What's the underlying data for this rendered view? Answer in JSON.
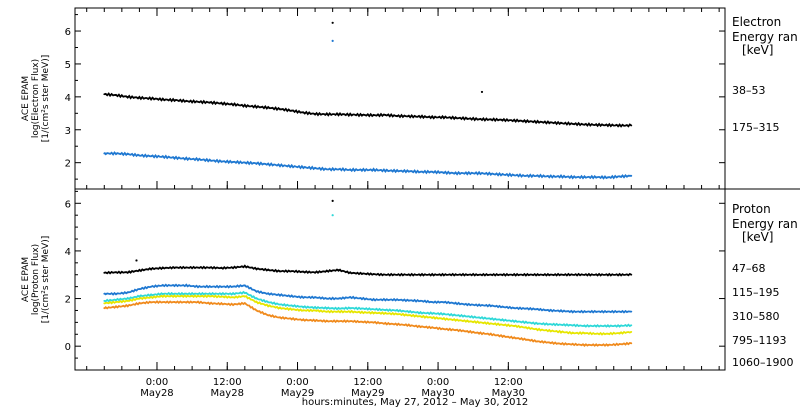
{
  "chart_data": [
    {
      "type": "scatter",
      "panel": "electron",
      "ylabel": [
        "ACE EPAM",
        "log(Electron Flux)",
        "[1/(cm²s ster MeV)]"
      ],
      "ylim": [
        1.2,
        6.7
      ],
      "yticks": [
        2,
        3,
        4,
        5,
        6
      ],
      "legend_title": [
        "Electron",
        "Energy ran",
        "[keV]"
      ],
      "legend_placement": "right",
      "series": [
        {
          "name": "38–53",
          "color": "#000000",
          "x": [
            0,
            2,
            4,
            6,
            8,
            10,
            12,
            14,
            16,
            18,
            20,
            22,
            24,
            26,
            28,
            30,
            32,
            34,
            36,
            38,
            40,
            42,
            44,
            46,
            48,
            50,
            52,
            54,
            56,
            58,
            60,
            62,
            64,
            66,
            68,
            70,
            72,
            74,
            76,
            78,
            80,
            82,
            84,
            86,
            88,
            90
          ],
          "y": [
            4.08,
            4.05,
            4.0,
            3.97,
            3.95,
            3.92,
            3.9,
            3.87,
            3.85,
            3.83,
            3.8,
            3.77,
            3.73,
            3.7,
            3.67,
            3.63,
            3.58,
            3.52,
            3.48,
            3.47,
            3.47,
            3.46,
            3.45,
            3.44,
            3.45,
            3.42,
            3.41,
            3.4,
            3.38,
            3.38,
            3.36,
            3.34,
            3.32,
            3.31,
            3.3,
            3.28,
            3.26,
            3.24,
            3.22,
            3.2,
            3.18,
            3.16,
            3.15,
            3.14,
            3.13,
            3.13
          ]
        },
        {
          "name": "175–315",
          "color": "#1f78d1",
          "x": [
            0,
            2,
            4,
            6,
            8,
            10,
            12,
            14,
            16,
            18,
            20,
            22,
            24,
            26,
            28,
            30,
            32,
            34,
            36,
            38,
            40,
            42,
            44,
            46,
            48,
            50,
            52,
            54,
            56,
            58,
            60,
            62,
            64,
            66,
            68,
            70,
            72,
            74,
            76,
            78,
            80,
            82,
            84,
            86,
            88,
            90
          ],
          "y": [
            2.28,
            2.28,
            2.26,
            2.22,
            2.2,
            2.18,
            2.15,
            2.12,
            2.1,
            2.07,
            2.04,
            2.02,
            2.0,
            1.98,
            1.95,
            1.92,
            1.89,
            1.86,
            1.83,
            1.8,
            1.8,
            1.78,
            1.78,
            1.78,
            1.76,
            1.75,
            1.74,
            1.72,
            1.72,
            1.7,
            1.68,
            1.68,
            1.68,
            1.66,
            1.64,
            1.62,
            1.6,
            1.6,
            1.58,
            1.58,
            1.56,
            1.56,
            1.56,
            1.55,
            1.58,
            1.6
          ]
        },
        {
          "name": "38–53 spikes",
          "color": "#000000",
          "x": [
            39,
            64.5
          ],
          "y": [
            6.25,
            4.15
          ]
        },
        {
          "name": "175–315 spikes",
          "color": "#1f78d1",
          "x": [
            39
          ],
          "y": [
            5.7
          ]
        }
      ]
    },
    {
      "type": "scatter",
      "panel": "proton",
      "ylabel": [
        "ACE EPAM",
        "log(Proton Flux)",
        "[1/(cm²s ster MeV)]"
      ],
      "ylim": [
        -1.0,
        6.6
      ],
      "yticks": [
        0,
        2,
        4,
        6
      ],
      "legend_title": [
        "Proton",
        "Energy ran",
        "[keV]"
      ],
      "legend_placement": "right",
      "series": [
        {
          "name": "47–68",
          "color": "#000000",
          "x": [
            0,
            2,
            4,
            6,
            8,
            10,
            12,
            14,
            16,
            18,
            20,
            22,
            24,
            26,
            28,
            30,
            32,
            34,
            36,
            38,
            40,
            42,
            44,
            46,
            48,
            50,
            52,
            54,
            56,
            58,
            60,
            62,
            64,
            66,
            68,
            70,
            72,
            74,
            76,
            78,
            80,
            82,
            84,
            86,
            88,
            90
          ],
          "y": [
            3.08,
            3.1,
            3.1,
            3.18,
            3.25,
            3.28,
            3.3,
            3.3,
            3.3,
            3.3,
            3.28,
            3.3,
            3.35,
            3.25,
            3.2,
            3.15,
            3.15,
            3.12,
            3.1,
            3.15,
            3.2,
            3.08,
            3.05,
            3.02,
            3.0,
            3.0,
            3.0,
            3.0,
            3.0,
            3.0,
            3.0,
            3.0,
            3.0,
            3.0,
            3.0,
            3.0,
            3.0,
            3.0,
            3.0,
            3.0,
            3.0,
            3.0,
            3.0,
            3.0,
            3.0,
            3.0
          ]
        },
        {
          "name": "115–195",
          "color": "#1f78d1",
          "x": [
            0,
            2,
            4,
            6,
            8,
            10,
            12,
            14,
            16,
            18,
            20,
            22,
            24,
            26,
            28,
            30,
            32,
            34,
            36,
            38,
            40,
            42,
            44,
            46,
            48,
            50,
            52,
            54,
            56,
            58,
            60,
            62,
            64,
            66,
            68,
            70,
            72,
            74,
            76,
            78,
            80,
            82,
            84,
            86,
            88,
            90
          ],
          "y": [
            2.2,
            2.2,
            2.25,
            2.4,
            2.5,
            2.55,
            2.55,
            2.55,
            2.5,
            2.5,
            2.5,
            2.5,
            2.55,
            2.3,
            2.2,
            2.15,
            2.1,
            2.05,
            2.05,
            2.0,
            2.0,
            2.05,
            2.0,
            1.95,
            1.95,
            1.95,
            1.92,
            1.9,
            1.85,
            1.85,
            1.8,
            1.75,
            1.72,
            1.7,
            1.65,
            1.6,
            1.58,
            1.55,
            1.5,
            1.48,
            1.45,
            1.45,
            1.45,
            1.45,
            1.45,
            1.45
          ]
        },
        {
          "name": "310–580",
          "color": "#2ed8d8",
          "x": [
            0,
            2,
            4,
            6,
            8,
            10,
            12,
            14,
            16,
            18,
            20,
            22,
            24,
            26,
            28,
            30,
            32,
            34,
            36,
            38,
            40,
            42,
            44,
            46,
            48,
            50,
            52,
            54,
            56,
            58,
            60,
            62,
            64,
            66,
            68,
            70,
            72,
            74,
            76,
            78,
            80,
            82,
            84,
            86,
            88,
            90
          ],
          "y": [
            1.9,
            1.95,
            2.0,
            2.1,
            2.15,
            2.2,
            2.2,
            2.2,
            2.2,
            2.2,
            2.2,
            2.2,
            2.25,
            2.0,
            1.85,
            1.75,
            1.7,
            1.65,
            1.62,
            1.6,
            1.58,
            1.6,
            1.58,
            1.55,
            1.52,
            1.5,
            1.45,
            1.4,
            1.38,
            1.35,
            1.3,
            1.25,
            1.2,
            1.15,
            1.1,
            1.05,
            1.0,
            0.95,
            0.92,
            0.9,
            0.88,
            0.85,
            0.85,
            0.85,
            0.85,
            0.88
          ]
        },
        {
          "name": "795–1193",
          "color": "#e6e600",
          "x": [
            0,
            2,
            4,
            6,
            8,
            10,
            12,
            14,
            16,
            18,
            20,
            22,
            24,
            26,
            28,
            30,
            32,
            34,
            36,
            38,
            40,
            42,
            44,
            46,
            48,
            50,
            52,
            54,
            56,
            58,
            60,
            62,
            64,
            66,
            68,
            70,
            72,
            74,
            76,
            78,
            80,
            82,
            84,
            86,
            88,
            90
          ],
          "y": [
            1.8,
            1.85,
            1.9,
            2.0,
            2.05,
            2.1,
            2.1,
            2.1,
            2.1,
            2.1,
            2.08,
            2.05,
            2.1,
            1.85,
            1.7,
            1.6,
            1.55,
            1.5,
            1.5,
            1.45,
            1.45,
            1.45,
            1.42,
            1.4,
            1.38,
            1.35,
            1.3,
            1.25,
            1.2,
            1.15,
            1.1,
            1.05,
            1.0,
            0.95,
            0.9,
            0.85,
            0.78,
            0.7,
            0.65,
            0.6,
            0.55,
            0.55,
            0.52,
            0.52,
            0.55,
            0.6
          ]
        },
        {
          "name": "1060–1900",
          "color": "#f08a1c",
          "x": [
            0,
            2,
            4,
            6,
            8,
            10,
            12,
            14,
            16,
            18,
            20,
            22,
            24,
            26,
            28,
            30,
            32,
            34,
            36,
            38,
            40,
            42,
            44,
            46,
            48,
            50,
            52,
            54,
            56,
            58,
            60,
            62,
            64,
            66,
            68,
            70,
            72,
            74,
            76,
            78,
            80,
            82,
            84,
            86,
            88,
            90
          ],
          "y": [
            1.6,
            1.65,
            1.7,
            1.8,
            1.85,
            1.85,
            1.85,
            1.85,
            1.85,
            1.8,
            1.78,
            1.75,
            1.8,
            1.5,
            1.3,
            1.2,
            1.15,
            1.1,
            1.08,
            1.05,
            1.05,
            1.05,
            1.02,
            1.0,
            0.95,
            0.92,
            0.88,
            0.82,
            0.78,
            0.72,
            0.68,
            0.62,
            0.55,
            0.5,
            0.42,
            0.35,
            0.28,
            0.2,
            0.15,
            0.1,
            0.08,
            0.05,
            0.05,
            0.05,
            0.08,
            0.12
          ]
        },
        {
          "name": "47–68 spikes",
          "color": "#000000",
          "x": [
            5.5,
            39
          ],
          "y": [
            3.6,
            6.1
          ]
        },
        {
          "name": "310–580 spikes",
          "color": "#2ed8d8",
          "x": [
            39
          ],
          "y": [
            5.5
          ]
        }
      ]
    }
  ],
  "x_axis": {
    "range_hours": [
      -5,
      106
    ],
    "ticks": [
      {
        "hour": 9,
        "time": "0:00",
        "date": "May28"
      },
      {
        "hour": 21,
        "time": "12:00",
        "date": "May28"
      },
      {
        "hour": 33,
        "time": "0:00",
        "date": "May29"
      },
      {
        "hour": 45,
        "time": "12:00",
        "date": "May29"
      },
      {
        "hour": 57,
        "time": "0:00",
        "date": "May30"
      },
      {
        "hour": 69,
        "time": "12:00",
        "date": "May30"
      }
    ],
    "label": "hours:minutes, May 27, 2012 – May 30, 2012"
  }
}
